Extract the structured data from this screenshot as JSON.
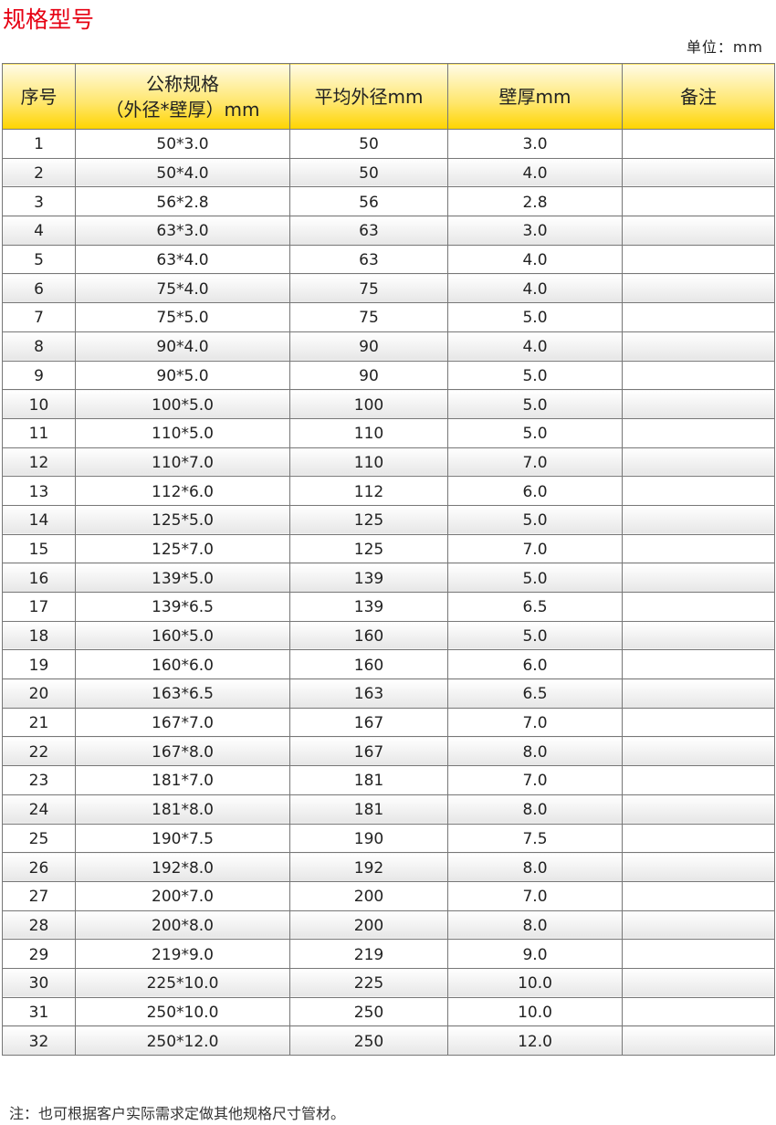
{
  "title": "规格型号",
  "unit": "单位：mm",
  "headers": [
    "序号",
    "公称规格",
    "（外径*壁厚）mm",
    "平均外径mm",
    "壁厚mm",
    "备注"
  ],
  "rows": [
    [
      "1",
      "50*3.0",
      "50",
      "3.0"
    ],
    [
      "2",
      "50*4.0",
      "50",
      "4.0"
    ],
    [
      "3",
      "56*2.8",
      "56",
      "2.8"
    ],
    [
      "4",
      "63*3.0",
      "63",
      "3.0"
    ],
    [
      "5",
      "63*4.0",
      "63",
      "4.0"
    ],
    [
      "6",
      "75*4.0",
      "75",
      "4.0"
    ],
    [
      "7",
      "75*5.0",
      "75",
      "5.0"
    ],
    [
      "8",
      "90*4.0",
      "90",
      "4.0"
    ],
    [
      "9",
      "90*5.0",
      "90",
      "5.0"
    ],
    [
      "10",
      "100*5.0",
      "100",
      "5.0"
    ],
    [
      "11",
      "110*5.0",
      "110",
      "5.0"
    ],
    [
      "12",
      "110*7.0",
      "110",
      "7.0"
    ],
    [
      "13",
      "112*6.0",
      "112",
      "6.0"
    ],
    [
      "14",
      "125*5.0",
      "125",
      "5.0"
    ],
    [
      "15",
      "125*7.0",
      "125",
      "7.0"
    ],
    [
      "16",
      "139*5.0",
      "139",
      "5.0"
    ],
    [
      "17",
      "139*6.5",
      "139",
      "6.5"
    ],
    [
      "18",
      "160*5.0",
      "160",
      "5.0"
    ],
    [
      "19",
      "160*6.0",
      "160",
      "6.0"
    ],
    [
      "20",
      "163*6.5",
      "163",
      "6.5"
    ],
    [
      "21",
      "167*7.0",
      "167",
      "7.0"
    ],
    [
      "22",
      "167*8.0",
      "167",
      "8.0"
    ],
    [
      "23",
      "181*7.0",
      "181",
      "7.0"
    ],
    [
      "24",
      "181*8.0",
      "181",
      "8.0"
    ],
    [
      "25",
      "190*7.5",
      "190",
      "7.5"
    ],
    [
      "26",
      "192*8.0",
      "192",
      "8.0"
    ],
    [
      "27",
      "200*7.0",
      "200",
      "7.0"
    ],
    [
      "28",
      "200*8.0",
      "200",
      "8.0"
    ],
    [
      "29",
      "219*9.0",
      "219",
      "9.0"
    ],
    [
      "30",
      "225*10.0",
      "225",
      "10.0"
    ],
    [
      "31",
      "250*10.0",
      "250",
      "10.0"
    ],
    [
      "32",
      "250*12.0",
      "250",
      "12.0"
    ]
  ],
  "note": "注：也可根据客户实际需求定做其他规格尺寸管材。",
  "colors": {
    "title": "#e60012",
    "header_gradient_end": "#ffd400"
  }
}
